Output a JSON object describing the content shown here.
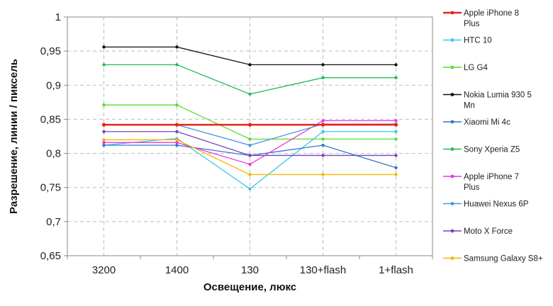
{
  "chart_data": {
    "type": "line",
    "categories": [
      "3200",
      "1400",
      "130",
      "130+flash",
      "1+flash"
    ],
    "xlabel": "Освещение,  люкс",
    "ylabel": "Разрешение,  линии  / пиксель",
    "ylim": [
      0.65,
      1
    ],
    "yticks": [
      "0,65",
      "0,7",
      "0,75",
      "0,8",
      "0,85",
      "0,9",
      "0,95",
      "1"
    ],
    "grid": true,
    "legend_position": "right",
    "series": [
      {
        "name": "Apple iPhone 8 Plus",
        "color": "#e8231a",
        "values": [
          0.842,
          0.842,
          0.842,
          0.842,
          0.842
        ]
      },
      {
        "name": "HTC 10",
        "color": "#38c8e8",
        "values": [
          0.812,
          0.822,
          0.748,
          0.832,
          0.832
        ]
      },
      {
        "name": "LG G4",
        "color": "#55dd33",
        "values": [
          0.871,
          0.871,
          0.821,
          0.821,
          0.821
        ]
      },
      {
        "name": "Nokia Lumia 930 5 Мп",
        "color": "#111111",
        "values": [
          0.956,
          0.956,
          0.93,
          0.93,
          0.93
        ]
      },
      {
        "name": "Xiaomi Mi 4c",
        "color": "#3377cc",
        "values": [
          0.812,
          0.812,
          0.797,
          0.812,
          0.779
        ]
      },
      {
        "name": "Sony Xperia Z5",
        "color": "#22bb55",
        "values": [
          0.93,
          0.93,
          0.887,
          0.911,
          0.911
        ]
      },
      {
        "name": "Apple iPhone 7 Plus",
        "color": "#ee33dd",
        "values": [
          0.816,
          0.816,
          0.784,
          0.848,
          0.848
        ]
      },
      {
        "name": "Huawei Nexus 6P",
        "color": "#4499dd",
        "values": [
          0.842,
          0.842,
          0.812,
          0.843,
          0.843
        ]
      },
      {
        "name": "Moto X Force",
        "color": "#7744bb",
        "values": [
          0.832,
          0.832,
          0.797,
          0.797,
          0.797
        ]
      },
      {
        "name": "Samsung Galaxy S8+",
        "color": "#f2b800",
        "values": [
          0.82,
          0.82,
          0.769,
          0.769,
          0.769
        ]
      }
    ]
  }
}
